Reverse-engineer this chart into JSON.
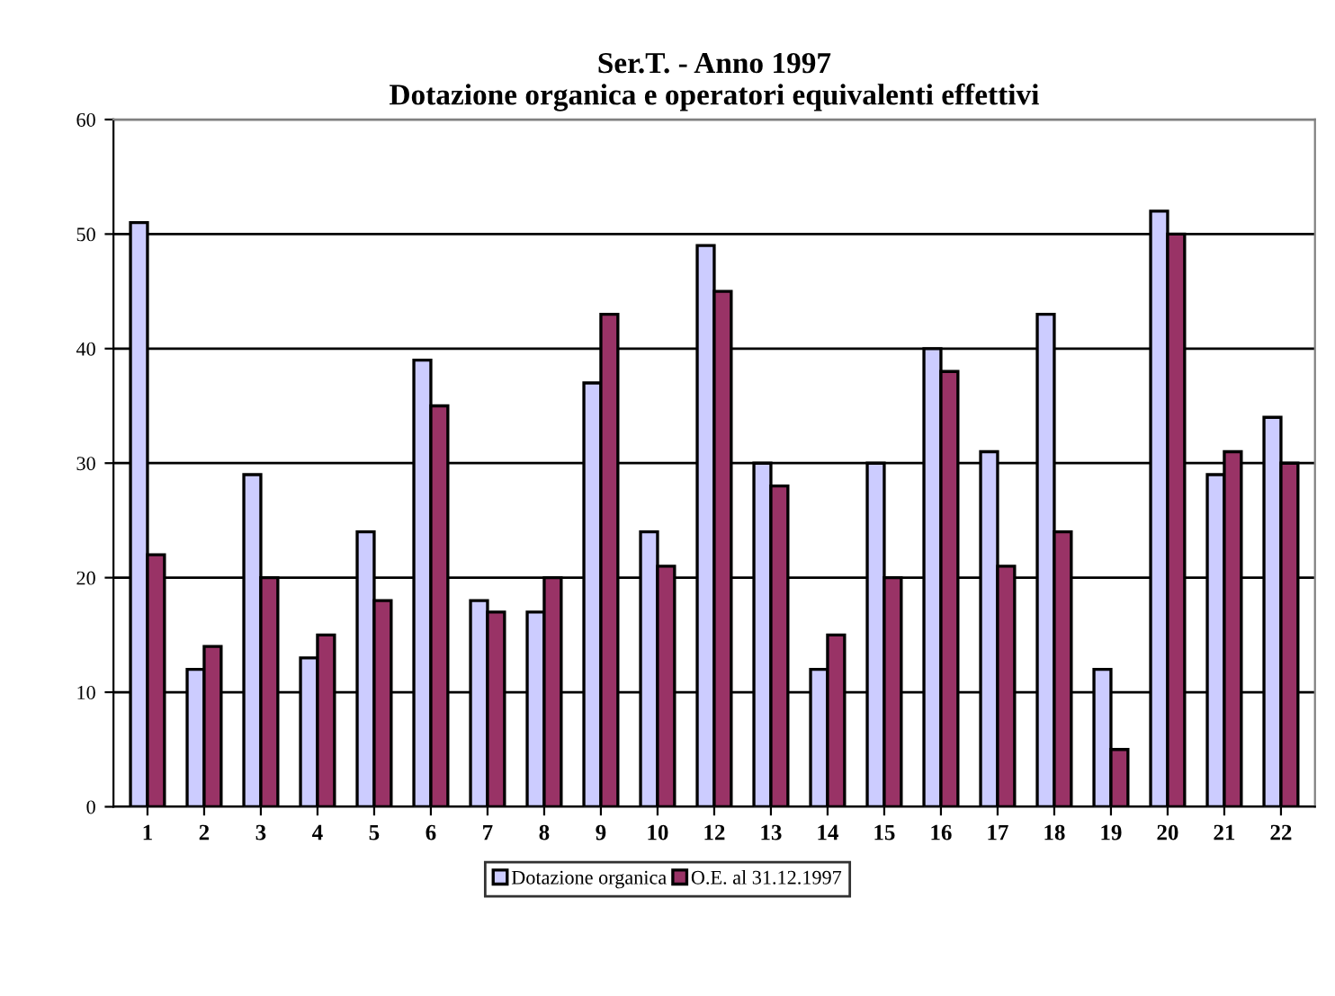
{
  "chart_data": {
    "type": "bar",
    "title": "Ser.T. - Anno 1997\nDotazione organica e operatori equivalenti effettivi",
    "categories": [
      "1",
      "2",
      "3",
      "4",
      "5",
      "6",
      "7",
      "8",
      "9",
      "10",
      "12",
      "13",
      "14",
      "15",
      "16",
      "17",
      "18",
      "19",
      "20",
      "21",
      "22"
    ],
    "series": [
      {
        "name": "Dotazione organica",
        "color": "#ccccff",
        "values": [
          51,
          12,
          29,
          13,
          24,
          39,
          18,
          17,
          37,
          24,
          49,
          30,
          12,
          30,
          40,
          31,
          43,
          12,
          52,
          29,
          34
        ]
      },
      {
        "name": "O.E. al 31.12.1997",
        "color": "#993366",
        "values": [
          22,
          14,
          20,
          15,
          18,
          35,
          17,
          20,
          43,
          21,
          45,
          28,
          15,
          20,
          38,
          21,
          24,
          5,
          50,
          31,
          30
        ]
      }
    ],
    "ylim": [
      0,
      60
    ],
    "yticks": [
      0,
      10,
      20,
      30,
      40,
      50,
      60
    ],
    "grid": "y",
    "legend": "bottom"
  }
}
